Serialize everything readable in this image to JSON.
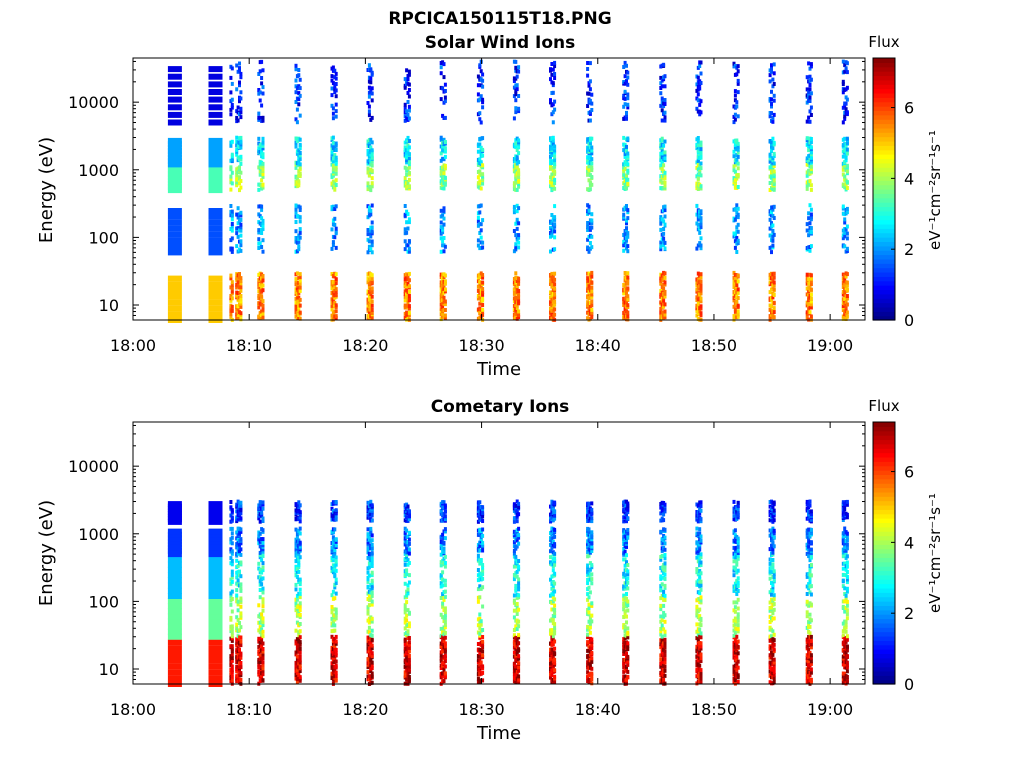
{
  "figure_title": "RPCICA150115T18.PNG",
  "colormap": [
    "#00007f",
    "#0000ff",
    "#007fff",
    "#00ffff",
    "#7fff7f",
    "#ffff00",
    "#ff7f00",
    "#ff0000",
    "#7f0000"
  ],
  "chart_data": [
    {
      "type": "heatmap",
      "title": "Solar Wind Ions",
      "xlabel": "Time",
      "ylabel": "Energy (eV)",
      "yscale": "log",
      "xlim": [
        "18:00",
        "19:03"
      ],
      "ylim": [
        6,
        45000
      ],
      "x_ticks": [
        "18:00",
        "18:10",
        "18:20",
        "18:30",
        "18:40",
        "18:50",
        "19:00"
      ],
      "y_ticks": [
        "10",
        "100",
        "1000",
        "10000"
      ],
      "colorbar": {
        "label": "Flux",
        "unit": "eV⁻¹cm⁻²sr⁻¹s⁻¹",
        "range": [
          0,
          7.4
        ],
        "ticks": [
          "0",
          "2",
          "4",
          "6"
        ]
      },
      "sweep_starts_min": [
        8.3,
        8.8,
        10.7,
        13.9,
        17.0,
        20.1,
        23.3,
        26.4,
        29.6,
        32.7,
        35.8,
        39.0,
        42.1,
        45.3,
        48.4,
        51.6,
        54.7,
        57.9,
        61.0
      ],
      "bands": [
        {
          "emin": 6,
          "emax": 30,
          "flux": 5.5
        },
        {
          "emin": 500,
          "emax": 1200,
          "flux": 3.8
        },
        {
          "emin": 1200,
          "emax": 3000,
          "flux": 2.6
        },
        {
          "emin": 60,
          "emax": 300,
          "flux": 2.0
        },
        {
          "emin": 5000,
          "emax": 40000,
          "flux": 1.2
        }
      ]
    },
    {
      "type": "heatmap",
      "title": "Cometary Ions",
      "xlabel": "Time",
      "ylabel": "Energy (eV)",
      "yscale": "log",
      "xlim": [
        "18:00",
        "19:03"
      ],
      "ylim": [
        6,
        45000
      ],
      "x_ticks": [
        "18:00",
        "18:10",
        "18:20",
        "18:30",
        "18:40",
        "18:50",
        "19:00"
      ],
      "y_ticks": [
        "10",
        "100",
        "1000",
        "10000"
      ],
      "colorbar": {
        "label": "Flux",
        "unit": "eV⁻¹cm⁻²sr⁻¹s⁻¹",
        "range": [
          0,
          7.4
        ],
        "ticks": [
          "0",
          "2",
          "4",
          "6"
        ]
      },
      "sweep_starts_min": [
        8.3,
        8.8,
        10.7,
        13.9,
        17.0,
        20.1,
        23.3,
        26.4,
        29.6,
        32.7,
        35.8,
        39.0,
        42.1,
        45.3,
        48.4,
        51.6,
        54.7,
        57.9,
        61.0
      ],
      "bands": [
        {
          "emin": 6,
          "emax": 30,
          "flux": 6.8
        },
        {
          "emin": 30,
          "emax": 120,
          "flux": 4.0
        },
        {
          "emin": 120,
          "emax": 500,
          "flux": 2.8
        },
        {
          "emin": 1500,
          "emax": 3000,
          "flux": 1.3
        },
        {
          "emin": 500,
          "emax": 1200,
          "flux": 1.8
        }
      ]
    }
  ]
}
